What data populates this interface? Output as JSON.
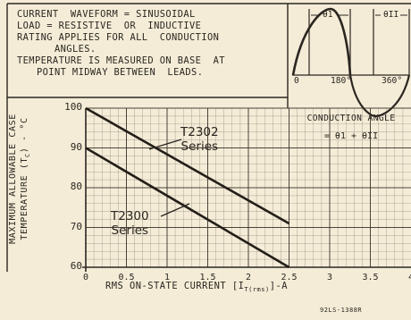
{
  "notes": {
    "line1": "CURRENT  WAVEFORM = SINUSOIDAL",
    "line2": "LOAD = RESISTIVE  OR  INDUCTIVE",
    "line3": "RATING APPLIES FOR ALL  CONDUCTION",
    "line4": "ANGLES.",
    "line5": "TEMPERATURE IS MEASURED ON BASE  AT",
    "line6": "POINT MIDWAY BETWEEN  LEADS."
  },
  "inset": {
    "theta1": "θ1",
    "theta2": "θII",
    "zero": "0",
    "deg180": "180°",
    "deg360": "360°",
    "caption": "CONDUCTION ANGLE",
    "equation": "= θ1 + θII"
  },
  "chart_data": {
    "type": "line",
    "ylabel": "MAXIMUM ALLOWABLE CASE TEMPERATURE (TC) - °C",
    "xlabel": "RMS ON-STATE CURRENT [IT(rms)] - A",
    "xlim": [
      0,
      4.5
    ],
    "ylim": [
      60,
      100
    ],
    "xticks": [
      "0",
      "0.5",
      "1",
      "1.5",
      "2",
      "2.5",
      "3",
      "3.5",
      "4"
    ],
    "yticks": [
      "100",
      "90",
      "80",
      "70",
      "60"
    ],
    "grid": true,
    "series": [
      {
        "name": "T2302 Series",
        "x": [
          0,
          2.5
        ],
        "y": [
          100,
          71
        ]
      },
      {
        "name": "T2300 Series",
        "x": [
          0,
          2.5
        ],
        "y": [
          90,
          60
        ]
      }
    ],
    "labels": {
      "t2302_line1": "T2302",
      "t2302_line2": "Series",
      "t2300_line1": "T2300",
      "t2300_line2": "Series"
    }
  },
  "figure_code": "92LS-1388R"
}
